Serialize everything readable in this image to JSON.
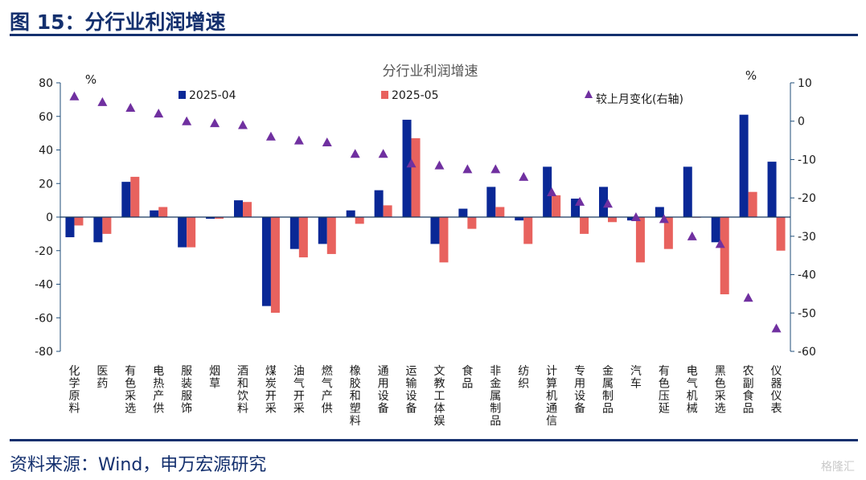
{
  "figure_title": "图 15：分行业利润增速",
  "source": "资料来源：Wind，申万宏源研究",
  "watermark": "格隆汇",
  "colors": {
    "series_2025_04": "#0a2896",
    "series_2025_05": "#e8625e",
    "series_change": "#7030a0",
    "axis": "#1f4e79",
    "heading": "#14306e"
  },
  "chart_data": {
    "type": "bar",
    "title": "分行业利润增速",
    "left_unit": "%",
    "right_unit": "%",
    "ylim_left": [
      -80,
      80
    ],
    "yticks_left": [
      80,
      60,
      40,
      20,
      0,
      -20,
      -40,
      -60,
      -80
    ],
    "ylim_right": [
      -60,
      10
    ],
    "yticks_right": [
      10,
      0,
      -10,
      -20,
      -30,
      -40,
      -50,
      -60
    ],
    "categories": [
      "化学原料",
      "医药",
      "有色采选",
      "电热产供",
      "服装服饰",
      "烟草",
      "酒和饮料",
      "煤炭开采",
      "油气开采",
      "燃气产供",
      "橡胶和塑料",
      "通用设备",
      "运输设备",
      "文教工体娱",
      "食品",
      "非金属制品",
      "纺织",
      "计算机通信",
      "专用设备",
      "金属制品",
      "汽车",
      "有色压延",
      "电气机械",
      "黑色采选",
      "农副食品",
      "仪器仪表"
    ],
    "series": [
      {
        "name": "2025-04",
        "type": "bar",
        "axis": "left",
        "values": [
          -12,
          -15,
          21,
          4,
          -18,
          -1,
          10,
          -53,
          -19,
          -16,
          4,
          16,
          58,
          -16,
          5,
          18,
          -2,
          30,
          11,
          18,
          -2,
          6,
          30,
          -15,
          61,
          33
        ]
      },
      {
        "name": "2025-05",
        "type": "bar",
        "axis": "left",
        "values": [
          -5,
          -10,
          24,
          6,
          -18,
          -1,
          9,
          -57,
          -24,
          -22,
          -4,
          7,
          47,
          -27,
          -7,
          6,
          -16,
          13,
          -10,
          -3,
          -27,
          -19,
          0,
          -46,
          15,
          -20
        ]
      },
      {
        "name": "较上月变化(右轴)",
        "type": "scatter",
        "axis": "right",
        "values": [
          6.5,
          5,
          3.5,
          2,
          0,
          -0.5,
          -1,
          -4,
          -5,
          -5.5,
          -8.5,
          -8.5,
          -11,
          -11.5,
          -12.5,
          -12.5,
          -14.5,
          -18.5,
          -21,
          -21.5,
          -25,
          -25.5,
          -30,
          -32,
          -46,
          -54
        ]
      }
    ]
  }
}
